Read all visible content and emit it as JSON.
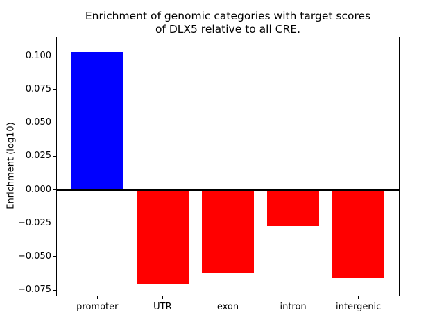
{
  "title_line1": "Enrichment of genomic categories with target scores",
  "title_line2": "of DLX5 relative to all CRE.",
  "chart_data": {
    "type": "bar",
    "title": "Enrichment of genomic categories with target scores of DLX5 relative to all CRE.",
    "xlabel": "",
    "ylabel": "Enrichment (log10)",
    "categories": [
      "promoter",
      "UTR",
      "exon",
      "intron",
      "intergenic"
    ],
    "values": [
      0.103,
      -0.071,
      -0.062,
      -0.027,
      -0.066
    ],
    "colors": [
      "#0000ff",
      "#ff0000",
      "#ff0000",
      "#ff0000",
      "#ff0000"
    ],
    "yticks": [
      0.1,
      0.075,
      0.05,
      0.025,
      0.0,
      -0.025,
      -0.05,
      -0.075
    ],
    "ytick_labels": [
      "0.100",
      "0.075",
      "0.050",
      "0.025",
      "0.000",
      "−0.025",
      "−0.050",
      "−0.075"
    ],
    "ylim": [
      -0.0791,
      0.114
    ],
    "xlim": [
      -0.62,
      4.62
    ],
    "bar_width": 0.8,
    "zero_line": {
      "value": 0,
      "color": "#000000",
      "thickness_px": 2
    },
    "grid": false,
    "legend": null,
    "background_color": "#ffffff",
    "frame_color": "#000000",
    "bar_positive_color": "#0000ff",
    "bar_negative_color": "#ff0000"
  }
}
